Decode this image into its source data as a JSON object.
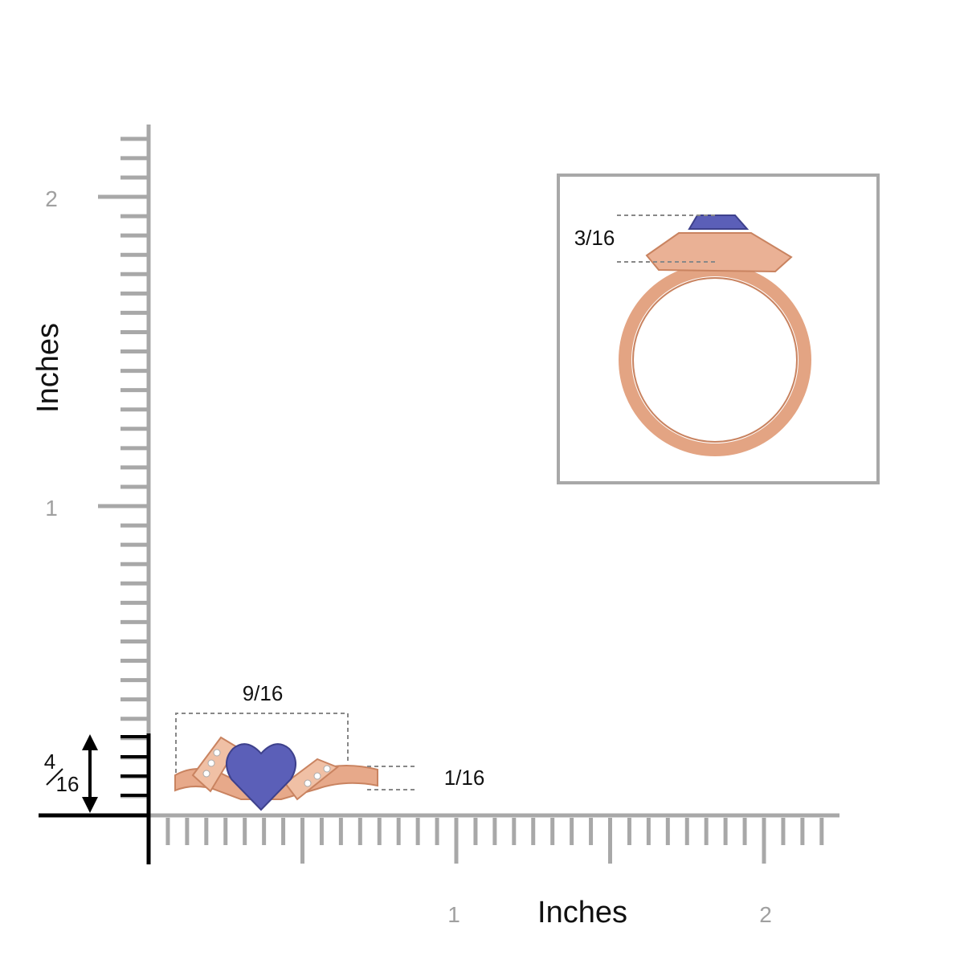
{
  "ruler": {
    "y_axis": {
      "labels": [
        "2",
        "1"
      ],
      "title": "Inches"
    },
    "x_axis": {
      "labels": [
        "1",
        "2"
      ],
      "title": "Inches"
    }
  },
  "dimensions": {
    "width": "9/16",
    "height": "1/16",
    "total_height": {
      "numerator": "4",
      "denominator": "16"
    },
    "top_view_height": "3/16"
  }
}
